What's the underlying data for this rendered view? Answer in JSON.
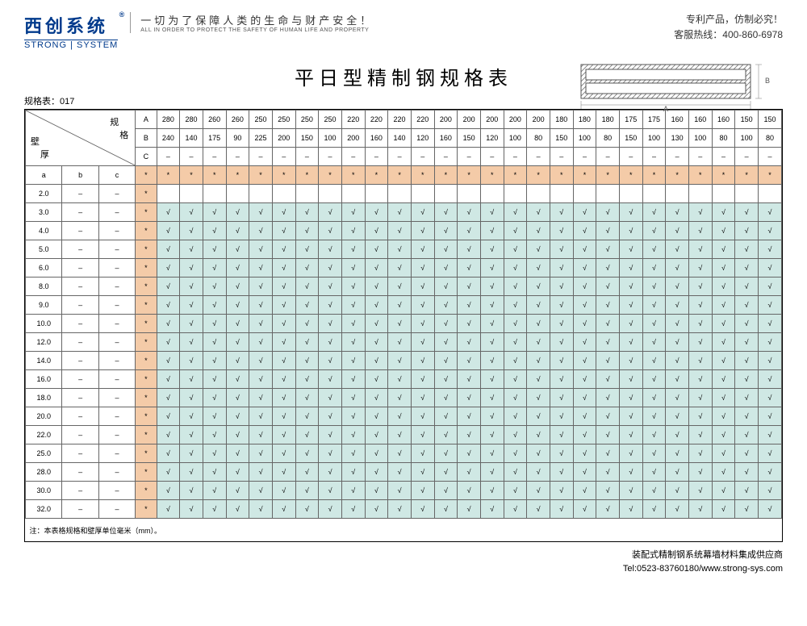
{
  "logo": {
    "main": "西创系统",
    "reg": "®",
    "sub": "STRONG | SYSTEM"
  },
  "slogan": {
    "cn": "一切为了保障人类的生命与财产安全！",
    "en": "ALL IN ORDER TO PROTECT THE SAFETY OF HUMAN LIFE AND PROPERTY"
  },
  "top_right": {
    "line1": "专利产品，仿制必究！",
    "line2": "客服热线：400-860-6978"
  },
  "title": "平日型精制钢规格表",
  "spec_no": "规格表：017",
  "corner": {
    "spec": "规",
    "ge": "格",
    "wall": "壁",
    "thick": "厚"
  },
  "dim_labels": [
    "A",
    "B",
    "C"
  ],
  "A": [
    "280",
    "280",
    "260",
    "260",
    "250",
    "250",
    "250",
    "250",
    "220",
    "220",
    "220",
    "220",
    "200",
    "200",
    "200",
    "200",
    "200",
    "180",
    "180",
    "180",
    "175",
    "175",
    "160",
    "160",
    "160",
    "150",
    "150"
  ],
  "B": [
    "240",
    "140",
    "175",
    "90",
    "225",
    "200",
    "150",
    "100",
    "200",
    "160",
    "140",
    "120",
    "160",
    "150",
    "120",
    "100",
    "80",
    "150",
    "100",
    "80",
    "150",
    "100",
    "130",
    "100",
    "80",
    "100",
    "80"
  ],
  "C_dash": "–",
  "abc": [
    "a",
    "b",
    "c"
  ],
  "thicknesses": [
    "2.0",
    "3.0",
    "4.0",
    "5.0",
    "6.0",
    "8.0",
    "9.0",
    "10.0",
    "12.0",
    "14.0",
    "16.0",
    "18.0",
    "20.0",
    "22.0",
    "25.0",
    "28.0",
    "30.0",
    "32.0"
  ],
  "dash": "–",
  "star": "*",
  "check": "√",
  "note": "注：本表格规格和壁厚单位毫米（mm）。",
  "footer": {
    "line1": "装配式精制钢系统幕墙材料集成供应商",
    "line2": "Tel:0523-83760180/www.strong-sys.com"
  },
  "diagram": {
    "labelA": "A",
    "labelB": "B"
  },
  "colors": {
    "peach": "#f4cba8",
    "teal": "#cfe8e4",
    "border": "#666666",
    "navy": "#003a8c"
  }
}
